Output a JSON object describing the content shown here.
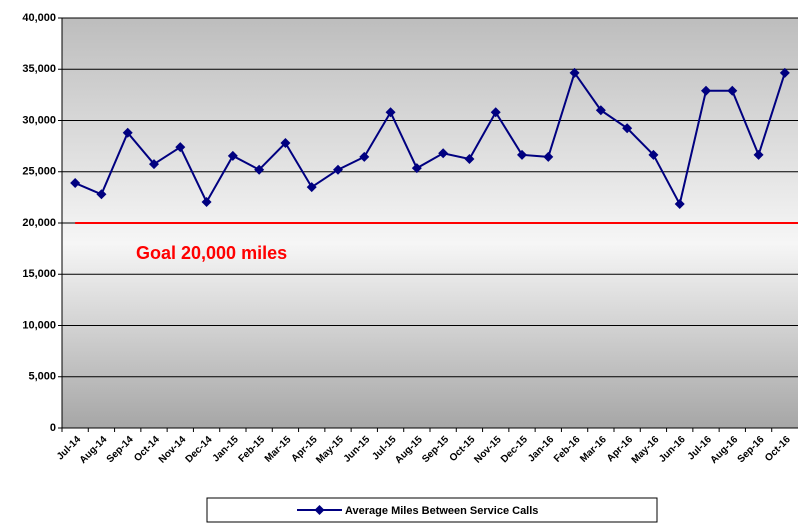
{
  "chart_data": {
    "type": "line",
    "categories": [
      "Jul-14",
      "Aug-14",
      "Sep-14",
      "Oct-14",
      "Nov-14",
      "Dec-14",
      "Jan-15",
      "Feb-15",
      "Mar-15",
      "Apr-15",
      "May-15",
      "Jun-15",
      "Jul-15",
      "Aug-15",
      "Sep-15",
      "Oct-15",
      "Nov-15",
      "Dec-15",
      "Jan-16",
      "Feb-16",
      "Mar-16",
      "Apr-16",
      "May-16",
      "Jun-16",
      "Jul-16",
      "Aug-16",
      "Sep-16",
      "Oct-16"
    ],
    "series": [
      {
        "name": "Average Miles Between Service Calls",
        "color": "#000080",
        "values": [
          23900,
          22800,
          28800,
          25750,
          27400,
          22050,
          26550,
          25200,
          27800,
          23500,
          25200,
          26450,
          30800,
          25350,
          26800,
          26250,
          30800,
          26650,
          26450,
          34650,
          31000,
          29250,
          26650,
          21850,
          32900,
          32900,
          26650,
          34650
        ]
      }
    ],
    "goal": {
      "value": 20000,
      "label": "Goal 20,000 miles",
      "color": "#ff0000"
    },
    "ylim": [
      0,
      40000
    ],
    "yticks": [
      0,
      {
        "value": 5000,
        "label": "5,000"
      },
      {
        "value": 10000,
        "label": "10,000"
      },
      {
        "value": 15000,
        "label": "15,000"
      },
      {
        "value": 20000,
        "label": "20,000"
      },
      {
        "value": 25000,
        "label": "25,000"
      },
      {
        "value": 30000,
        "label": "30,000"
      },
      {
        "value": 35000,
        "label": "35,000"
      },
      {
        "value": 40000,
        "label": "40,000"
      }
    ],
    "grid": true
  }
}
